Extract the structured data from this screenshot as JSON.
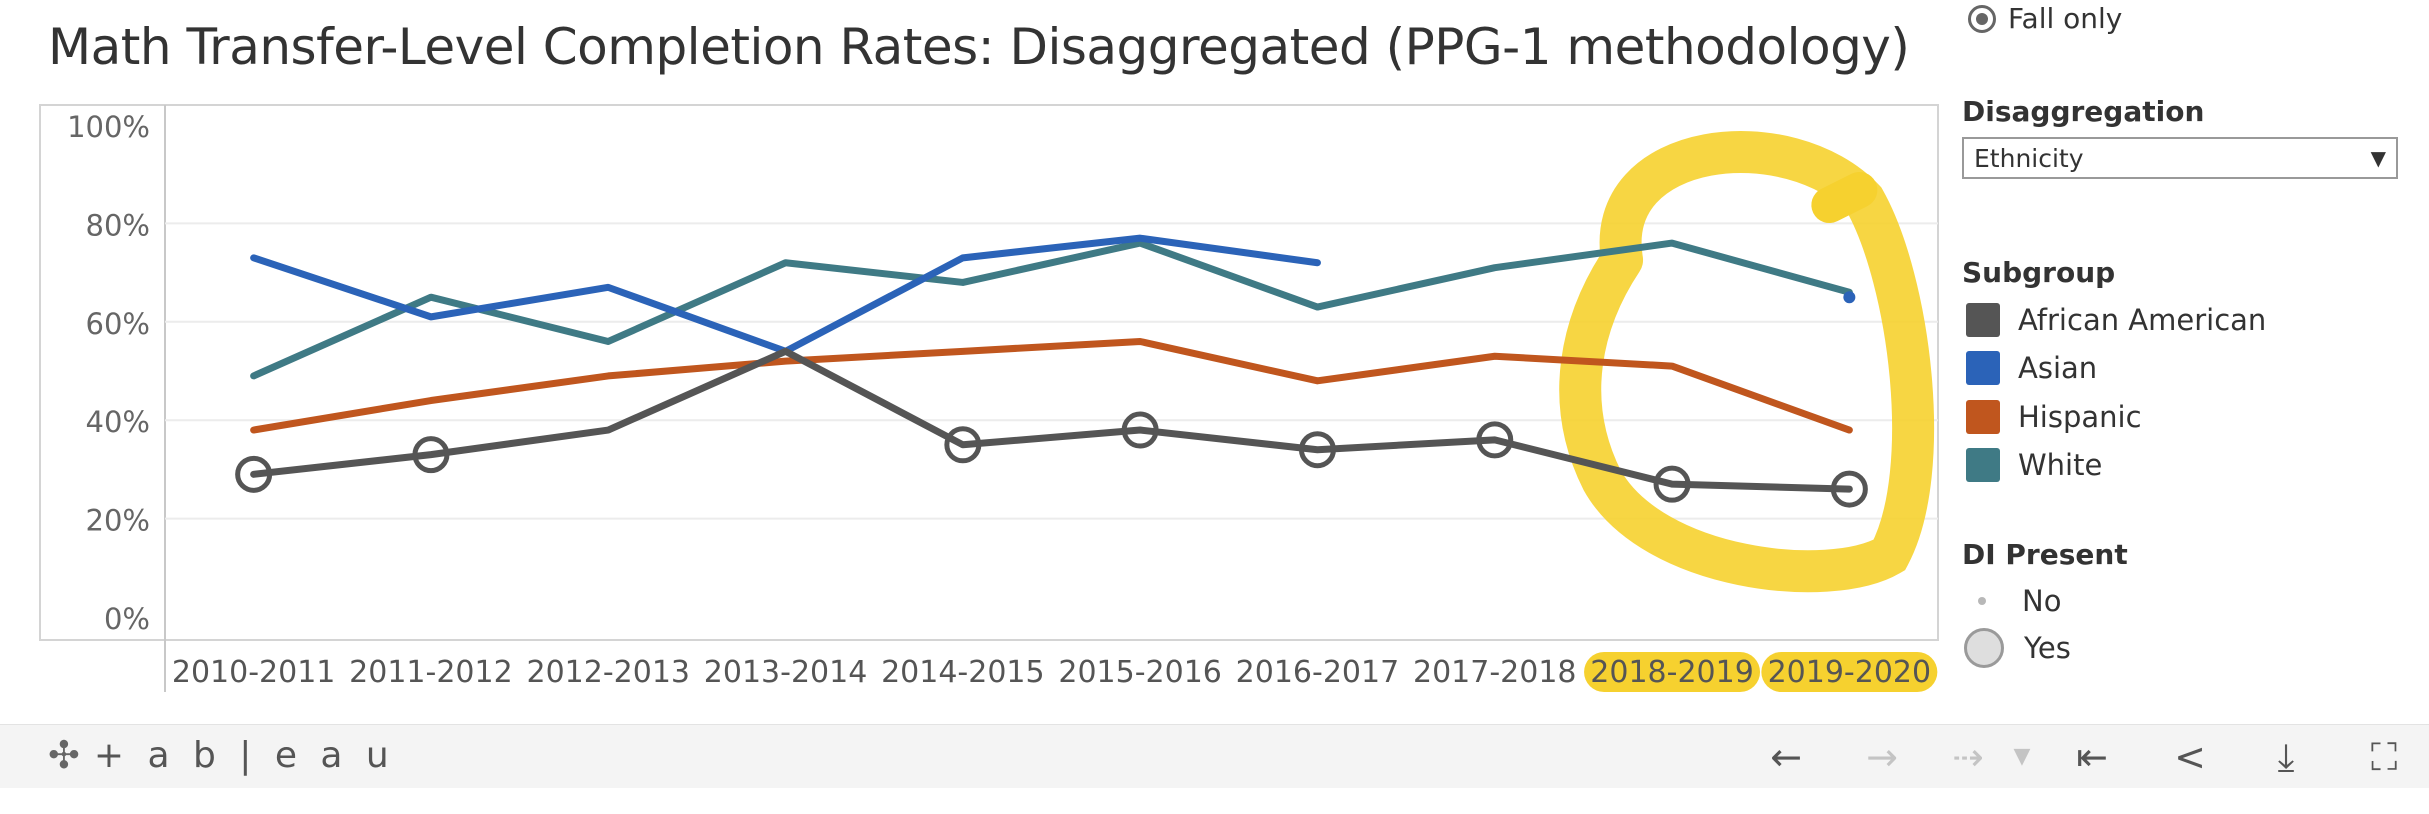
{
  "title": "Math Transfer-Level Completion Rates: Disaggregated (PPG-1 methodology)",
  "filter": {
    "radio_label": "Fall only"
  },
  "disaggregation": {
    "label": "Disaggregation",
    "value": "Ethnicity"
  },
  "subgroup": {
    "label": "Subgroup",
    "items": [
      {
        "name": "African American",
        "color": "#555555"
      },
      {
        "name": "Asian",
        "color": "#2b63b8"
      },
      {
        "name": "Hispanic",
        "color": "#c0561e"
      },
      {
        "name": "White",
        "color": "#3f7a85"
      }
    ]
  },
  "di_present": {
    "label": "DI Present",
    "no": "No",
    "yes": "Yes"
  },
  "highlight_color": "#f6d12f",
  "chart_data": {
    "type": "line",
    "title": "Math Transfer-Level Completion Rates: Disaggregated (PPG-1 methodology)",
    "x": [
      "2010-2011",
      "2011-2012",
      "2012-2013",
      "2013-2014",
      "2014-2015",
      "2015-2016",
      "2016-2017",
      "2017-2018",
      "2018-2019",
      "2019-2020"
    ],
    "y_ticks": [
      "0%",
      "20%",
      "40%",
      "60%",
      "80%",
      "100%"
    ],
    "ylim": [
      0,
      100
    ],
    "grid": true,
    "legend_placement": "right",
    "highlighted_categories": [
      "2018-2019",
      "2019-2020"
    ],
    "series": [
      {
        "name": "African American",
        "color": "#555555",
        "values": [
          29,
          33,
          38,
          54,
          35,
          38,
          34,
          36,
          27,
          26
        ],
        "di_present": [
          true,
          true,
          false,
          false,
          true,
          true,
          true,
          true,
          true,
          true
        ]
      },
      {
        "name": "Asian",
        "color": "#2b63b8",
        "values": [
          73,
          61,
          67,
          54,
          73,
          77,
          72,
          null,
          null,
          65
        ],
        "di_present": [
          false,
          false,
          false,
          false,
          false,
          false,
          false,
          false,
          false,
          false
        ]
      },
      {
        "name": "Hispanic",
        "color": "#c0561e",
        "values": [
          38,
          44,
          49,
          52,
          54,
          56,
          48,
          53,
          51,
          38
        ],
        "di_present": [
          false,
          false,
          false,
          false,
          false,
          false,
          false,
          false,
          false,
          false
        ]
      },
      {
        "name": "White",
        "color": "#3f7a85",
        "values": [
          49,
          65,
          56,
          72,
          68,
          76,
          63,
          71,
          76,
          66
        ],
        "di_present": [
          false,
          false,
          false,
          false,
          false,
          false,
          false,
          false,
          false,
          false
        ]
      }
    ]
  },
  "toolbar": {
    "brand": "+ a b | e a u",
    "icons": [
      "undo-icon",
      "redo-icon",
      "revert-icon",
      "dropdown-icon",
      "reset-icon",
      "share-icon",
      "download-icon",
      "fullscreen-icon"
    ]
  }
}
